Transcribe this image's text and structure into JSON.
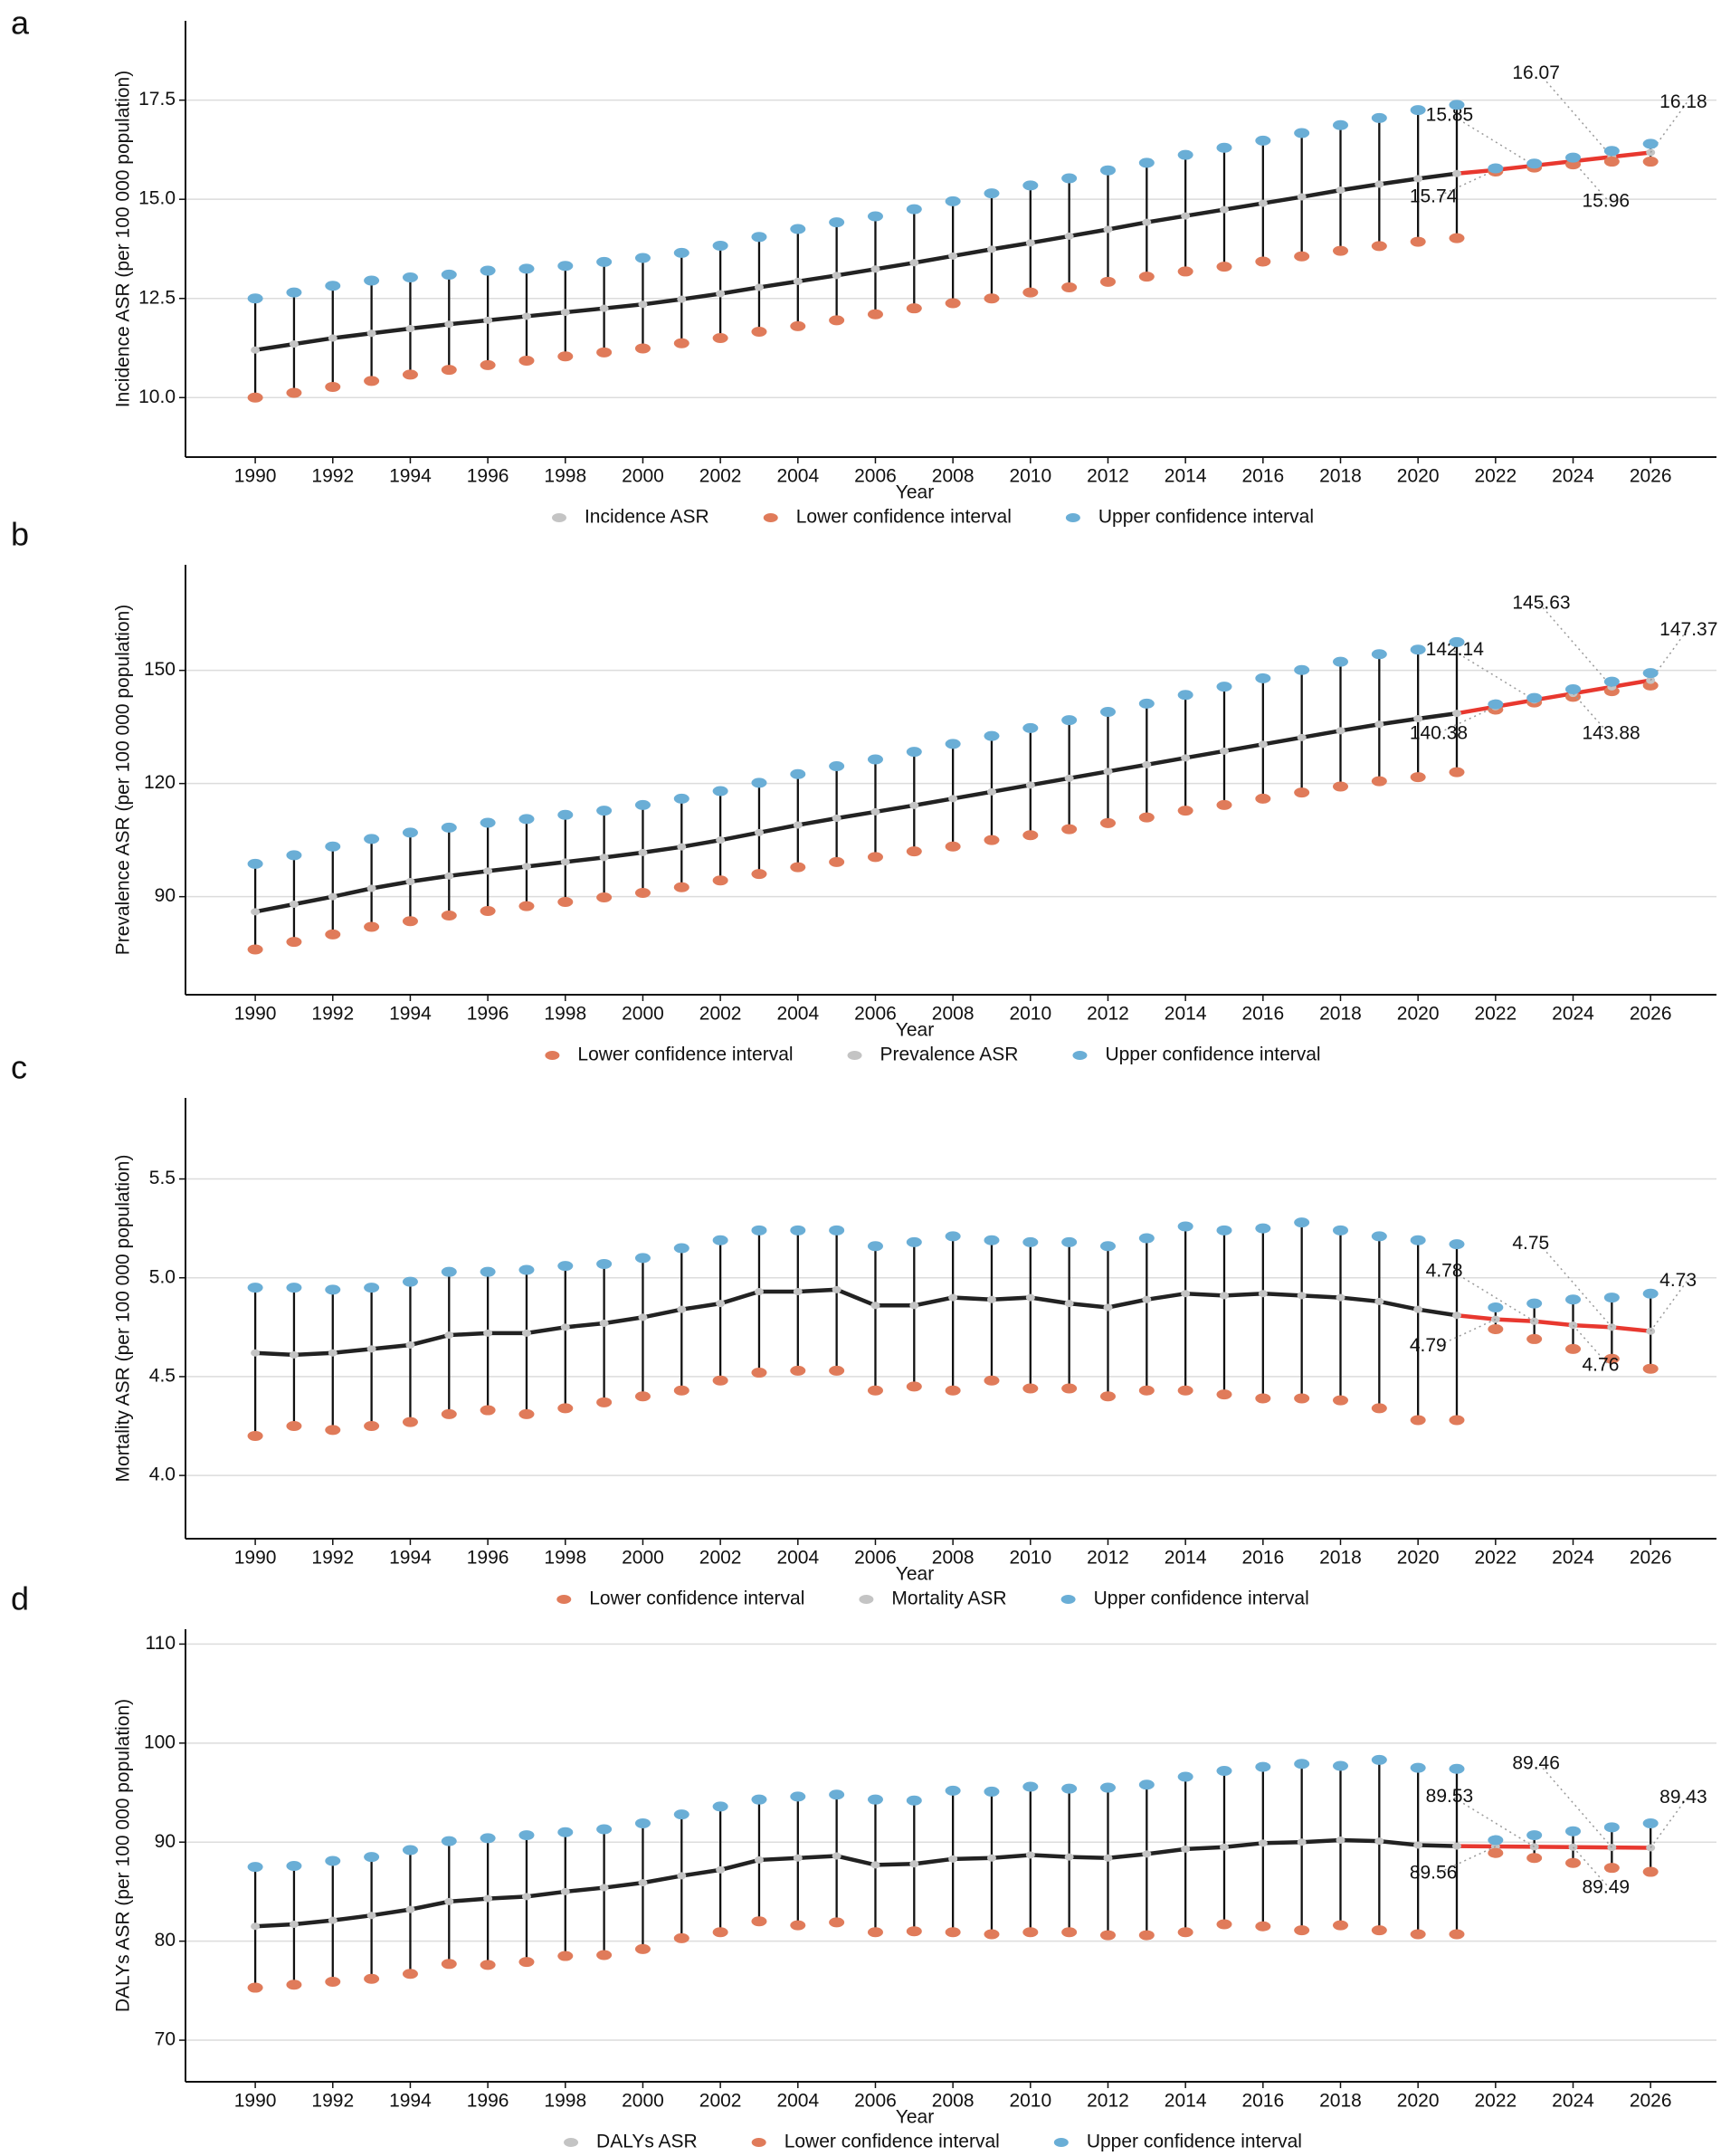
{
  "chart_data": [
    {
      "type": "line",
      "panel": "a",
      "x_label": "Year",
      "y_label": "Incidence ASR (per 100 000 population)",
      "x": [
        1990,
        1991,
        1992,
        1993,
        1994,
        1995,
        1996,
        1997,
        1998,
        1999,
        2000,
        2001,
        2002,
        2003,
        2004,
        2005,
        2006,
        2007,
        2008,
        2009,
        2010,
        2011,
        2012,
        2013,
        2014,
        2015,
        2016,
        2017,
        2018,
        2019,
        2020,
        2021,
        2022,
        2023,
        2024,
        2025,
        2026
      ],
      "xlim": [
        1988.2,
        2027.7
      ],
      "xticks": [
        1990,
        1992,
        1994,
        1996,
        1998,
        2000,
        2002,
        2004,
        2006,
        2008,
        2010,
        2012,
        2014,
        2016,
        2018,
        2020,
        2022,
        2024,
        2026
      ],
      "ylim": [
        8.5,
        19.5
      ],
      "yticks": [
        {
          "value": 10,
          "label": "10.0"
        },
        12.5,
        {
          "value": 15,
          "label": "15.0"
        },
        17.5
      ],
      "grid": true,
      "legend": "bottom",
      "forecast_from": 2021,
      "forecast_color": "#e8382f",
      "line_color": "#222222",
      "series": [
        {
          "name": "Incidence ASR",
          "mark": "line",
          "color": "#c4c4c4",
          "values": [
            11.2,
            11.35,
            11.5,
            11.62,
            11.74,
            11.85,
            11.95,
            12.05,
            12.15,
            12.25,
            12.35,
            12.48,
            12.62,
            12.78,
            12.93,
            13.08,
            13.24,
            13.4,
            13.57,
            13.74,
            13.9,
            14.07,
            14.24,
            14.42,
            14.58,
            14.74,
            14.9,
            15.06,
            15.23,
            15.38,
            15.52,
            15.65,
            15.74,
            15.85,
            15.96,
            16.07,
            16.18
          ],
          "value_labels": [
            null,
            null,
            null,
            null,
            null,
            null,
            null,
            null,
            null,
            null,
            null,
            null,
            null,
            null,
            null,
            null,
            null,
            null,
            null,
            null,
            null,
            null,
            null,
            null,
            null,
            null,
            null,
            null,
            null,
            null,
            null,
            null,
            "15.74",
            "15.85",
            "15.96",
            "16.07",
            "16.18"
          ]
        },
        {
          "name": "Lower confidence interval",
          "mark": "point",
          "color": "#e07b5a",
          "values": [
            10.0,
            10.12,
            10.27,
            10.42,
            10.58,
            10.7,
            10.82,
            10.93,
            11.04,
            11.14,
            11.24,
            11.37,
            11.5,
            11.66,
            11.8,
            11.95,
            12.1,
            12.25,
            12.38,
            12.5,
            12.65,
            12.78,
            12.92,
            13.05,
            13.18,
            13.3,
            13.43,
            13.56,
            13.7,
            13.82,
            13.93,
            14.02,
            15.7,
            15.8,
            15.88,
            15.95,
            15.95
          ]
        },
        {
          "name": "Upper confidence interval",
          "mark": "point",
          "color": "#6aaed6",
          "values": [
            12.5,
            12.65,
            12.82,
            12.95,
            13.03,
            13.1,
            13.2,
            13.25,
            13.32,
            13.42,
            13.52,
            13.65,
            13.83,
            14.05,
            14.25,
            14.42,
            14.57,
            14.75,
            14.95,
            15.15,
            15.35,
            15.53,
            15.73,
            15.92,
            16.12,
            16.3,
            16.48,
            16.67,
            16.87,
            17.05,
            17.25,
            17.38,
            15.78,
            15.9,
            16.05,
            16.22,
            16.4
          ]
        }
      ]
    },
    {
      "type": "line",
      "panel": "b",
      "x_label": "Year",
      "y_label": "Prevalence ASR (per 100 000 population)",
      "x": [
        1990,
        1991,
        1992,
        1993,
        1994,
        1995,
        1996,
        1997,
        1998,
        1999,
        2000,
        2001,
        2002,
        2003,
        2004,
        2005,
        2006,
        2007,
        2008,
        2009,
        2010,
        2011,
        2012,
        2013,
        2014,
        2015,
        2016,
        2017,
        2018,
        2019,
        2020,
        2021,
        2022,
        2023,
        2024,
        2025,
        2026
      ],
      "xlim": [
        1988.2,
        2027.7
      ],
      "xticks": [
        1990,
        1992,
        1994,
        1996,
        1998,
        2000,
        2002,
        2004,
        2006,
        2008,
        2010,
        2012,
        2014,
        2016,
        2018,
        2020,
        2022,
        2024,
        2026
      ],
      "ylim": [
        64,
        178
      ],
      "yticks": [
        90,
        120,
        150
      ],
      "grid": true,
      "legend": "bottom",
      "forecast_from": 2021,
      "forecast_color": "#e8382f",
      "line_color": "#222222",
      "series": [
        {
          "name": "Lower confidence interval",
          "mark": "point",
          "color": "#e07b5a",
          "values": [
            76,
            78,
            80,
            82,
            83.5,
            85,
            86.2,
            87.5,
            88.6,
            89.8,
            91,
            92.5,
            94.3,
            96,
            97.8,
            99.2,
            100.5,
            102,
            103.3,
            105,
            106.3,
            107.9,
            109.5,
            111,
            112.8,
            114.3,
            116,
            117.6,
            119.2,
            120.6,
            121.7,
            123,
            139.6,
            141.5,
            143,
            144.5,
            146
          ]
        },
        {
          "name": "Prevalence ASR",
          "mark": "line",
          "color": "#c4c4c4",
          "values": [
            86,
            88,
            90,
            92.2,
            94,
            95.5,
            96.8,
            98,
            99.2,
            100.4,
            101.7,
            103.2,
            105,
            107,
            109,
            110.8,
            112.5,
            114.2,
            116,
            117.8,
            119.6,
            121.4,
            123.2,
            125,
            126.8,
            128.6,
            130.4,
            132.2,
            134,
            135.7,
            137.2,
            138.6,
            140.38,
            142.14,
            143.88,
            145.63,
            147.37
          ],
          "value_labels": [
            null,
            null,
            null,
            null,
            null,
            null,
            null,
            null,
            null,
            null,
            null,
            null,
            null,
            null,
            null,
            null,
            null,
            null,
            null,
            null,
            null,
            null,
            null,
            null,
            null,
            null,
            null,
            null,
            null,
            null,
            null,
            null,
            "140.38",
            "142.14",
            "143.88",
            "145.63",
            "147.37"
          ]
        },
        {
          "name": "Upper confidence interval",
          "mark": "point",
          "color": "#6aaed6",
          "values": [
            98.7,
            101,
            103.3,
            105.3,
            107,
            108.3,
            109.6,
            110.6,
            111.7,
            112.8,
            114.3,
            116,
            118,
            120.2,
            122.5,
            124.6,
            126.4,
            128.4,
            130.5,
            132.6,
            134.7,
            136.8,
            139,
            141.2,
            143.5,
            145.7,
            147.9,
            150.1,
            152.3,
            154.3,
            155.5,
            157.5,
            141,
            142.7,
            145,
            147,
            149.3
          ]
        }
      ]
    },
    {
      "type": "line",
      "panel": "c",
      "x_label": "Year",
      "y_label": "Mortality ASR (per 100 000 population)",
      "x": [
        1990,
        1991,
        1992,
        1993,
        1994,
        1995,
        1996,
        1997,
        1998,
        1999,
        2000,
        2001,
        2002,
        2003,
        2004,
        2005,
        2006,
        2007,
        2008,
        2009,
        2010,
        2011,
        2012,
        2013,
        2014,
        2015,
        2016,
        2017,
        2018,
        2019,
        2020,
        2021,
        2022,
        2023,
        2024,
        2025,
        2026
      ],
      "xlim": [
        1988.2,
        2027.7
      ],
      "xticks": [
        1990,
        1992,
        1994,
        1996,
        1998,
        2000,
        2002,
        2004,
        2006,
        2008,
        2010,
        2012,
        2014,
        2016,
        2018,
        2020,
        2022,
        2024,
        2026
      ],
      "ylim": [
        3.68,
        5.91
      ],
      "yticks": [
        {
          "value": 4,
          "label": "4.0"
        },
        4.5,
        {
          "value": 5,
          "label": "5.0"
        },
        5.5
      ],
      "grid": true,
      "legend": "bottom",
      "forecast_from": 2021,
      "forecast_color": "#e8382f",
      "line_color": "#222222",
      "series": [
        {
          "name": "Lower confidence interval",
          "mark": "point",
          "color": "#e07b5a",
          "values": [
            4.2,
            4.25,
            4.23,
            4.25,
            4.27,
            4.31,
            4.33,
            4.31,
            4.34,
            4.37,
            4.4,
            4.43,
            4.48,
            4.52,
            4.53,
            4.53,
            4.43,
            4.45,
            4.43,
            4.48,
            4.44,
            4.44,
            4.4,
            4.43,
            4.43,
            4.41,
            4.39,
            4.39,
            4.38,
            4.34,
            4.28,
            4.28,
            4.74,
            4.69,
            4.64,
            4.59,
            4.54
          ]
        },
        {
          "name": "Mortality ASR",
          "mark": "line",
          "color": "#c4c4c4",
          "values": [
            4.62,
            4.61,
            4.62,
            4.64,
            4.66,
            4.71,
            4.72,
            4.72,
            4.75,
            4.77,
            4.8,
            4.84,
            4.87,
            4.93,
            4.93,
            4.94,
            4.86,
            4.86,
            4.9,
            4.89,
            4.9,
            4.87,
            4.85,
            4.89,
            4.92,
            4.91,
            4.92,
            4.91,
            4.9,
            4.88,
            4.84,
            4.81,
            4.79,
            4.78,
            4.76,
            4.75,
            4.73
          ],
          "value_labels": [
            null,
            null,
            null,
            null,
            null,
            null,
            null,
            null,
            null,
            null,
            null,
            null,
            null,
            null,
            null,
            null,
            null,
            null,
            null,
            null,
            null,
            null,
            null,
            null,
            null,
            null,
            null,
            null,
            null,
            null,
            null,
            null,
            "4.79",
            "4.78",
            "4.76",
            "4.75",
            "4.73"
          ]
        },
        {
          "name": "Upper confidence interval",
          "mark": "point",
          "color": "#6aaed6",
          "values": [
            4.95,
            4.95,
            4.94,
            4.95,
            4.98,
            5.03,
            5.03,
            5.04,
            5.06,
            5.07,
            5.1,
            5.15,
            5.19,
            5.24,
            5.24,
            5.24,
            5.16,
            5.18,
            5.21,
            5.19,
            5.18,
            5.18,
            5.16,
            5.2,
            5.26,
            5.24,
            5.25,
            5.28,
            5.24,
            5.21,
            5.19,
            5.17,
            4.85,
            4.87,
            4.89,
            4.9,
            4.92
          ]
        }
      ]
    },
    {
      "type": "line",
      "panel": "d",
      "x_label": "Year",
      "y_label": "DALYs ASR (per 100 000 population)",
      "x": [
        1990,
        1991,
        1992,
        1993,
        1994,
        1995,
        1996,
        1997,
        1998,
        1999,
        2000,
        2001,
        2002,
        2003,
        2004,
        2005,
        2006,
        2007,
        2008,
        2009,
        2010,
        2011,
        2012,
        2013,
        2014,
        2015,
        2016,
        2017,
        2018,
        2019,
        2020,
        2021,
        2022,
        2023,
        2024,
        2025,
        2026
      ],
      "xlim": [
        1988.2,
        2027.7
      ],
      "xticks": [
        1990,
        1992,
        1994,
        1996,
        1998,
        2000,
        2002,
        2004,
        2006,
        2008,
        2010,
        2012,
        2014,
        2016,
        2018,
        2020,
        2022,
        2024,
        2026
      ],
      "ylim": [
        65.8,
        111.5
      ],
      "yticks": [
        70,
        80,
        90,
        100,
        110
      ],
      "grid": true,
      "legend": "bottom",
      "forecast_from": 2021,
      "forecast_color": "#e8382f",
      "line_color": "#222222",
      "series": [
        {
          "name": "DALYs ASR",
          "mark": "line",
          "color": "#c4c4c4",
          "values": [
            81.5,
            81.7,
            82.1,
            82.6,
            83.2,
            84.0,
            84.3,
            84.5,
            85.0,
            85.4,
            85.9,
            86.6,
            87.2,
            88.2,
            88.4,
            88.6,
            87.7,
            87.8,
            88.3,
            88.4,
            88.7,
            88.5,
            88.4,
            88.8,
            89.3,
            89.5,
            89.9,
            90.0,
            90.2,
            90.1,
            89.7,
            89.6,
            89.56,
            89.53,
            89.49,
            89.46,
            89.43
          ],
          "value_labels": [
            null,
            null,
            null,
            null,
            null,
            null,
            null,
            null,
            null,
            null,
            null,
            null,
            null,
            null,
            null,
            null,
            null,
            null,
            null,
            null,
            null,
            null,
            null,
            null,
            null,
            null,
            null,
            null,
            null,
            null,
            null,
            null,
            "89.56",
            "89.53",
            "89.49",
            "89.46",
            "89.43"
          ]
        },
        {
          "name": "Lower confidence interval",
          "mark": "point",
          "color": "#e07b5a",
          "values": [
            75.3,
            75.6,
            75.9,
            76.2,
            76.7,
            77.7,
            77.6,
            77.9,
            78.5,
            78.6,
            79.2,
            80.3,
            80.9,
            82.0,
            81.6,
            81.9,
            80.9,
            81.0,
            80.9,
            80.7,
            80.9,
            80.9,
            80.6,
            80.6,
            80.9,
            81.7,
            81.5,
            81.1,
            81.6,
            81.1,
            80.7,
            80.7,
            88.9,
            88.4,
            87.9,
            87.4,
            87.0
          ]
        },
        {
          "name": "Upper confidence interval",
          "mark": "point",
          "color": "#6aaed6",
          "values": [
            87.5,
            87.6,
            88.1,
            88.5,
            89.2,
            90.1,
            90.4,
            90.7,
            91.0,
            91.3,
            91.9,
            92.8,
            93.6,
            94.3,
            94.6,
            94.8,
            94.3,
            94.2,
            95.2,
            95.1,
            95.6,
            95.4,
            95.5,
            95.8,
            96.6,
            97.2,
            97.6,
            97.9,
            97.7,
            98.3,
            97.5,
            97.4,
            90.2,
            90.7,
            91.1,
            91.5,
            91.9
          ]
        }
      ]
    }
  ]
}
